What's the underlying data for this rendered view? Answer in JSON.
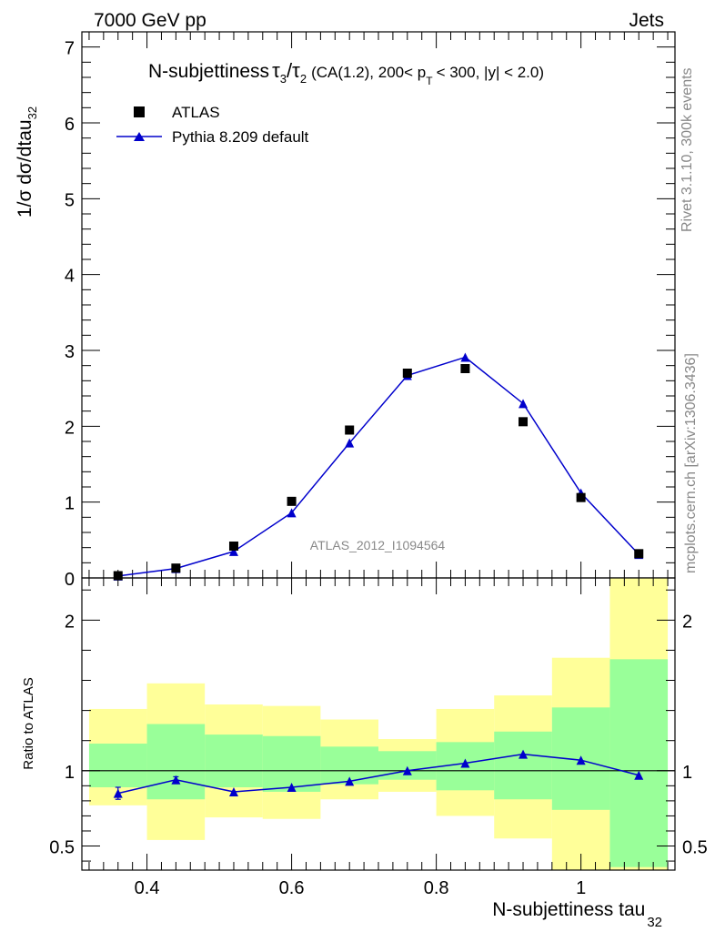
{
  "header": {
    "left": "7000 GeV pp",
    "right": "Jets"
  },
  "side_labels": {
    "rivet": "Rivet 3.1.10,  300k events",
    "mcplots": "mcplots.cern.ch [arXiv:1306.3436]"
  },
  "chart_data": [
    {
      "type": "scatter",
      "title": {
        "main": "N-subjettiness",
        "tau3": "τ",
        "sub3": "3",
        "slash": "/",
        "tau2": "τ",
        "sub2": "2",
        "cut_a": "(CA(1.2), 200< p",
        "cut_sub": "T",
        "cut_b": "< 300, |y| < 2.0)"
      },
      "ylabel": {
        "main": "1/σ dσ/dtau",
        "sub": "32"
      },
      "analysis_label": "ATLAS_2012_I1094564",
      "xlim": [
        0.31,
        1.13
      ],
      "ylim": [
        0,
        7.2
      ],
      "y_ticks": [
        "0",
        "1",
        "2",
        "3",
        "4",
        "5",
        "6",
        "7"
      ],
      "legend": {
        "placement": "top-left",
        "entries": [
          "ATLAS",
          "Pythia 8.209 default"
        ]
      },
      "series": [
        {
          "name": "ATLAS",
          "marker": "square",
          "color": "#000000",
          "x": [
            0.36,
            0.44,
            0.52,
            0.6,
            0.68,
            0.76,
            0.84,
            0.92,
            1.0,
            1.08
          ],
          "y": [
            0.03,
            0.13,
            0.42,
            1.01,
            1.95,
            2.7,
            2.76,
            2.06,
            1.06,
            0.32
          ]
        },
        {
          "name": "Pythia 8.209 default",
          "marker": "triangle",
          "line": true,
          "color": "#0000cc",
          "x": [
            0.36,
            0.44,
            0.52,
            0.6,
            0.68,
            0.76,
            0.84,
            0.92,
            1.0,
            1.08
          ],
          "y": [
            0.025,
            0.125,
            0.35,
            0.86,
            1.78,
            2.67,
            2.91,
            2.3,
            1.12,
            0.31
          ]
        }
      ]
    },
    {
      "type": "scatter",
      "ylabel": "Ratio to ATLAS",
      "xlabel": {
        "main": "N-subjettiness tau",
        "sub": "32"
      },
      "xlim": [
        0.31,
        1.13
      ],
      "ylim": [
        0.34,
        2.28
      ],
      "x_ticks": [
        "0.4",
        "0.6",
        "0.8",
        "1"
      ],
      "x_tick_values": [
        0.4,
        0.6,
        0.8,
        1.0
      ],
      "y_ticks": [
        "0.5",
        "1",
        "2"
      ],
      "y_tick_values": [
        0.5,
        1,
        2
      ],
      "reference_line": 1,
      "bands": {
        "bins": [
          [
            0.32,
            0.4
          ],
          [
            0.4,
            0.48
          ],
          [
            0.48,
            0.56
          ],
          [
            0.56,
            0.64
          ],
          [
            0.64,
            0.72
          ],
          [
            0.72,
            0.8
          ],
          [
            0.8,
            0.88
          ],
          [
            0.88,
            0.96
          ],
          [
            0.96,
            1.04
          ],
          [
            1.04,
            1.12
          ]
        ],
        "yellow": [
          [
            0.77,
            1.41
          ],
          [
            0.54,
            1.58
          ],
          [
            0.69,
            1.44
          ],
          [
            0.68,
            1.43
          ],
          [
            0.81,
            1.34
          ],
          [
            0.86,
            1.21
          ],
          [
            0.7,
            1.41
          ],
          [
            0.55,
            1.5
          ],
          [
            0.34,
            1.75
          ],
          [
            0.34,
            2.28
          ]
        ],
        "green": [
          [
            0.89,
            1.18
          ],
          [
            0.81,
            1.31
          ],
          [
            0.89,
            1.24
          ],
          [
            0.86,
            1.23
          ],
          [
            0.91,
            1.16
          ],
          [
            0.94,
            1.13
          ],
          [
            0.87,
            1.19
          ],
          [
            0.81,
            1.26
          ],
          [
            0.74,
            1.42
          ],
          [
            0.36,
            1.74
          ]
        ],
        "colors": {
          "yellow": "#ffff99",
          "green": "#99ff99"
        }
      },
      "series": [
        {
          "name": "Pythia 8.209 default",
          "marker": "triangle",
          "line": true,
          "color": "#0000cc",
          "x": [
            0.36,
            0.44,
            0.52,
            0.6,
            0.68,
            0.76,
            0.84,
            0.92,
            1.0,
            1.08
          ],
          "y": [
            0.85,
            0.94,
            0.86,
            0.89,
            0.93,
            1.0,
            1.05,
            1.11,
            1.07,
            0.97
          ],
          "err": [
            0.04,
            0.02,
            0.01,
            0.01,
            0.01,
            0.01,
            0.01,
            0.01,
            0.01,
            0.01
          ]
        }
      ]
    }
  ]
}
